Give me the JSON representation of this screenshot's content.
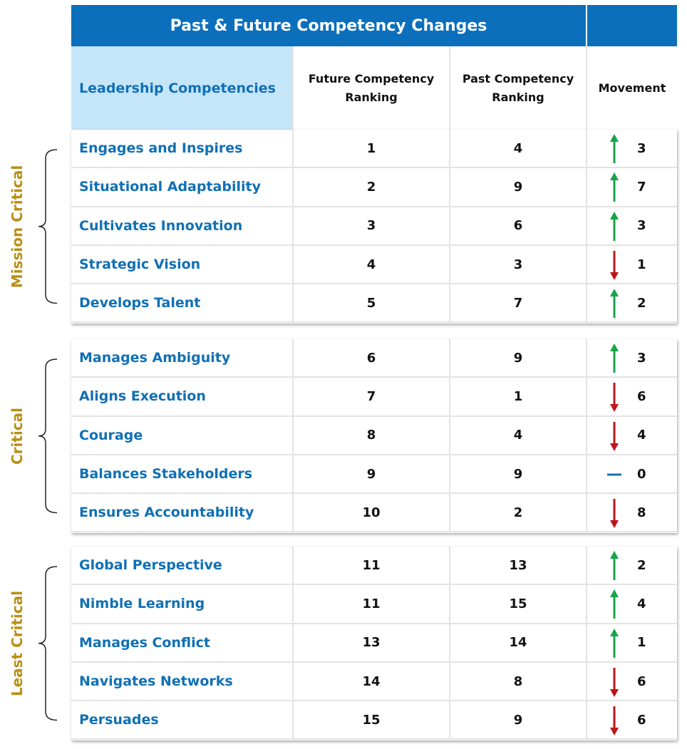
{
  "title": "Past & Future Competency Changes",
  "columns": [
    "Leadership Competencies",
    "Future Competency Ranking",
    "Past Competency Ranking",
    "Movement"
  ],
  "groups": [
    {
      "label": "Mission Critical",
      "rows": [
        {
          "name": "Engages and Inspires",
          "future": 1,
          "past": 4,
          "direction": "up",
          "movement": 3
        },
        {
          "name": "Situational Adaptability",
          "future": 2,
          "past": 9,
          "direction": "up",
          "movement": 7
        },
        {
          "name": "Cultivates Innovation",
          "future": 3,
          "past": 6,
          "direction": "up",
          "movement": 3
        },
        {
          "name": "Strategic Vision",
          "future": 4,
          "past": 3,
          "direction": "down",
          "movement": 1
        },
        {
          "name": "Develops Talent",
          "future": 5,
          "past": 7,
          "direction": "up",
          "movement": 2
        }
      ]
    },
    {
      "label": "Critical",
      "rows": [
        {
          "name": "Manages Ambiguity",
          "future": 6,
          "past": 9,
          "direction": "up",
          "movement": 3
        },
        {
          "name": "Aligns Execution",
          "future": 7,
          "past": 1,
          "direction": "down",
          "movement": 6
        },
        {
          "name": "Courage",
          "future": 8,
          "past": 4,
          "direction": "down",
          "movement": 4
        },
        {
          "name": "Balances Stakeholders",
          "future": 9,
          "past": 9,
          "direction": "none",
          "movement": 0
        },
        {
          "name": "Ensures Accountability",
          "future": 10,
          "past": 2,
          "direction": "down",
          "movement": 8
        }
      ]
    },
    {
      "label": "Least Critical",
      "rows": [
        {
          "name": "Global Perspective",
          "future": 11,
          "past": 13,
          "direction": "up",
          "movement": 2
        },
        {
          "name": "Nimble Learning",
          "future": 11,
          "past": 15,
          "direction": "up",
          "movement": 4
        },
        {
          "name": "Manages Conflict",
          "future": 13,
          "past": 14,
          "direction": "up",
          "movement": 1
        },
        {
          "name": "Navigates Networks",
          "future": 14,
          "past": 8,
          "direction": "down",
          "movement": 6
        },
        {
          "name": "Persuades",
          "future": 15,
          "past": 9,
          "direction": "down",
          "movement": 6
        }
      ]
    }
  ]
}
